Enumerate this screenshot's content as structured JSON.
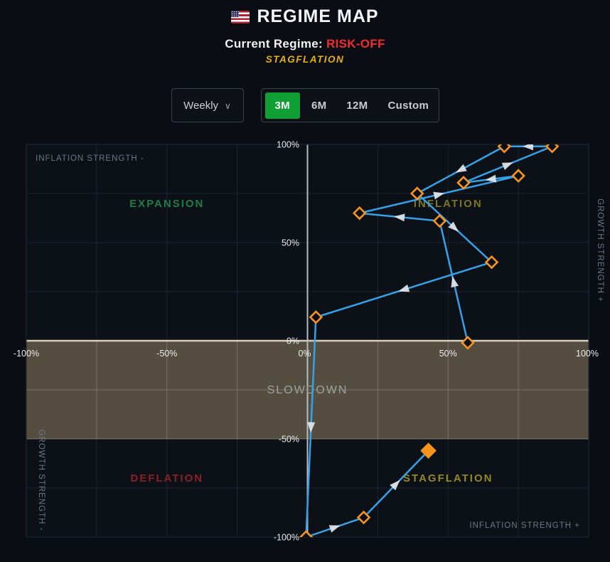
{
  "header": {
    "flag_icon": "us-flag-icon",
    "title": "REGIME MAP",
    "current_regime_label": "Current Regime:",
    "current_regime_value": "RISK-OFF",
    "current_regime_color": "#f22c2c",
    "sub_regime": "STAGFLATION",
    "sub_regime_color": "#e8b00d"
  },
  "controls": {
    "frequency_dropdown": {
      "value": "Weekly",
      "chevron": "⌄"
    },
    "range_buttons": [
      {
        "label": "3M",
        "selected": true
      },
      {
        "label": "6M",
        "selected": false
      },
      {
        "label": "12M",
        "selected": false
      },
      {
        "label": "Custom",
        "selected": false
      }
    ],
    "selected_bg": "#0f9f35"
  },
  "chart_data": {
    "type": "scatter",
    "title": "Regime map trajectory (weekly points over 3 months); path of (inflation strength, growth strength); last point = current regime",
    "xlim": [
      -100,
      100
    ],
    "ylim": [
      -100,
      100
    ],
    "grid": true,
    "grid_step_pct": 25,
    "x_ticks": [
      {
        "v": -100,
        "label": "-100%"
      },
      {
        "v": -50,
        "label": "-50%"
      },
      {
        "v": 0,
        "label": "0%"
      },
      {
        "v": 50,
        "label": "50%"
      },
      {
        "v": 100,
        "label": "100%"
      }
    ],
    "y_ticks": [
      {
        "v": 100,
        "label": "100%"
      },
      {
        "v": 50,
        "label": "50%"
      },
      {
        "v": 0,
        "label": "0%"
      },
      {
        "v": -50,
        "label": "-50%"
      },
      {
        "v": -100,
        "label": "-100%"
      }
    ],
    "band": {
      "label": "SLOWDOWN",
      "y_from": 0,
      "y_to": -50,
      "fill": "rgba(138,124,95,0.58)",
      "top_edge": "#d8d0be",
      "bottom_edge": "rgba(216,208,190,0.35)",
      "label_color": "#9aa3a3",
      "label_at": {
        "x": 0,
        "y": -25
      }
    },
    "quadrant_labels": [
      {
        "text": "EXPANSION",
        "x": -50,
        "y": 70,
        "color": "#1c7f45"
      },
      {
        "text": "INFLATION",
        "x": 50,
        "y": 70,
        "color": "#7c761f"
      },
      {
        "text": "DEFLATION",
        "x": -50,
        "y": -70,
        "color": "#8c2025"
      },
      {
        "text": "STAGFLATION",
        "x": 50,
        "y": -70,
        "color": "#93891f"
      }
    ],
    "corner_labels": [
      {
        "text": "INFLATION STRENGTH -",
        "pos": "top-left",
        "orientation": "horizontal"
      },
      {
        "text": "GROWTH STRENGTH +",
        "pos": "right-top",
        "orientation": "vertical"
      },
      {
        "text": "GROWTH STRENGTH -",
        "pos": "left-bottom",
        "orientation": "vertical"
      },
      {
        "text": "INFLATION STRENGTH +",
        "pos": "bottom-right",
        "orientation": "horizontal"
      }
    ],
    "series": [
      {
        "name": "weekly-regime-path",
        "line_color": "#35a1e9",
        "marker_color": "#f9941a",
        "arrow_color": "#e3e6ea",
        "points": [
          {
            "x": 57,
            "y": -1
          },
          {
            "x": 47,
            "y": 61
          },
          {
            "x": 18.5,
            "y": 65
          },
          {
            "x": 75,
            "y": 84
          },
          {
            "x": 55.5,
            "y": 80.5
          },
          {
            "x": 87,
            "y": 99
          },
          {
            "x": 70,
            "y": 99
          },
          {
            "x": 39,
            "y": 75
          },
          {
            "x": 65.5,
            "y": 40
          },
          {
            "x": 3,
            "y": 12
          },
          {
            "x": -0.5,
            "y": -100
          },
          {
            "x": 20,
            "y": -90
          },
          {
            "x": 43,
            "y": -56
          }
        ],
        "current_index": 12
      }
    ],
    "colors": {
      "plot_bg": "#0c1017",
      "plot_border": "#232a34",
      "grid": "#1f252e",
      "zero_line": "#b6bbc1",
      "tick_text": "#e9eced",
      "corner_text": "#6e7681"
    }
  }
}
